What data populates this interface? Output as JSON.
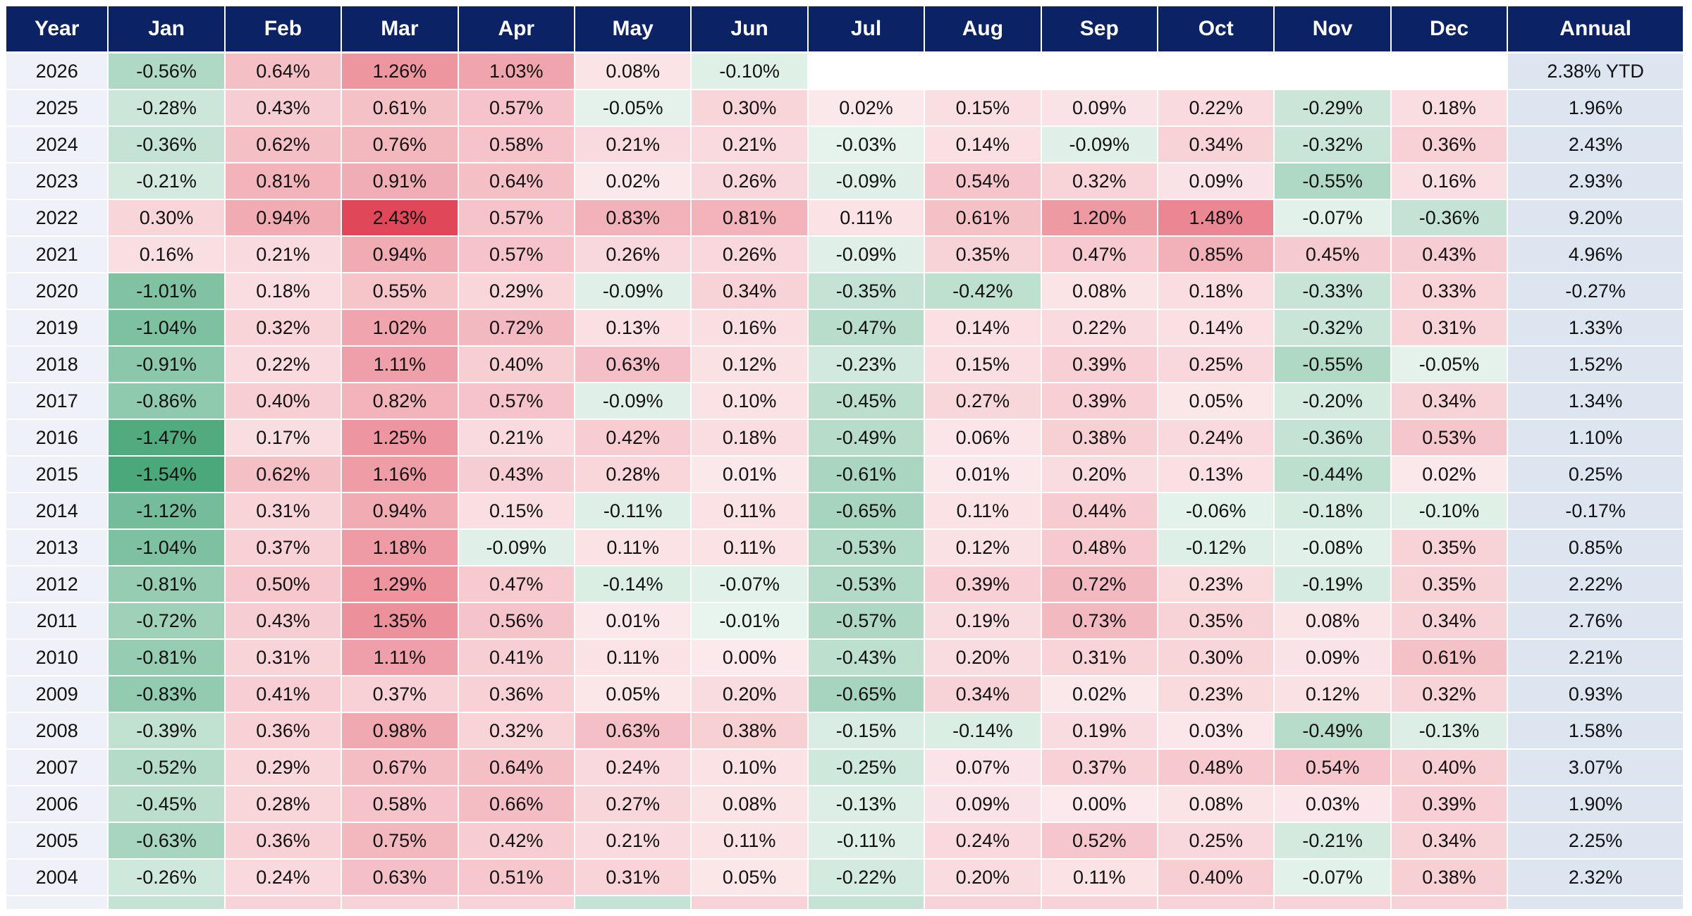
{
  "chart_data": {
    "type": "heatmap",
    "columns": [
      "Year",
      "Jan",
      "Feb",
      "Mar",
      "Apr",
      "May",
      "Jun",
      "Jul",
      "Aug",
      "Sep",
      "Oct",
      "Nov",
      "Dec",
      "Annual"
    ],
    "rows": [
      {
        "year": "2026",
        "values": [
          -0.56,
          0.64,
          1.26,
          1.03,
          0.08,
          -0.1,
          null,
          null,
          null,
          null,
          null,
          null
        ],
        "annual": "2.38% YTD"
      },
      {
        "year": "2025",
        "values": [
          -0.28,
          0.43,
          0.61,
          0.57,
          -0.05,
          0.3,
          0.02,
          0.15,
          0.09,
          0.22,
          -0.29,
          0.18
        ],
        "annual": "1.96%"
      },
      {
        "year": "2024",
        "values": [
          -0.36,
          0.62,
          0.76,
          0.58,
          0.21,
          0.21,
          -0.03,
          0.14,
          -0.09,
          0.34,
          -0.32,
          0.36
        ],
        "annual": "2.43%"
      },
      {
        "year": "2023",
        "values": [
          -0.21,
          0.81,
          0.91,
          0.64,
          0.02,
          0.26,
          -0.09,
          0.54,
          0.32,
          0.09,
          -0.55,
          0.16
        ],
        "annual": "2.93%"
      },
      {
        "year": "2022",
        "values": [
          0.3,
          0.94,
          2.43,
          0.57,
          0.83,
          0.81,
          0.11,
          0.61,
          1.2,
          1.48,
          -0.07,
          -0.36
        ],
        "annual": "9.20%"
      },
      {
        "year": "2021",
        "values": [
          0.16,
          0.21,
          0.94,
          0.57,
          0.26,
          0.26,
          -0.09,
          0.35,
          0.47,
          0.85,
          0.45,
          0.43
        ],
        "annual": "4.96%"
      },
      {
        "year": "2020",
        "values": [
          -1.01,
          0.18,
          0.55,
          0.29,
          -0.09,
          0.34,
          -0.35,
          -0.42,
          0.08,
          0.18,
          -0.33,
          0.33
        ],
        "annual": "-0.27%"
      },
      {
        "year": "2019",
        "values": [
          -1.04,
          0.32,
          1.02,
          0.72,
          0.13,
          0.16,
          -0.47,
          0.14,
          0.22,
          0.14,
          -0.32,
          0.31
        ],
        "annual": "1.33%"
      },
      {
        "year": "2018",
        "values": [
          -0.91,
          0.22,
          1.11,
          0.4,
          0.63,
          0.12,
          -0.23,
          0.15,
          0.39,
          0.25,
          -0.55,
          -0.05
        ],
        "annual": "1.52%"
      },
      {
        "year": "2017",
        "values": [
          -0.86,
          0.4,
          0.82,
          0.57,
          -0.09,
          0.1,
          -0.45,
          0.27,
          0.39,
          0.05,
          -0.2,
          0.34
        ],
        "annual": "1.34%"
      },
      {
        "year": "2016",
        "values": [
          -1.47,
          0.17,
          1.25,
          0.21,
          0.42,
          0.18,
          -0.49,
          0.06,
          0.38,
          0.24,
          -0.36,
          0.53
        ],
        "annual": "1.10%"
      },
      {
        "year": "2015",
        "values": [
          -1.54,
          0.62,
          1.16,
          0.43,
          0.28,
          0.01,
          -0.61,
          0.01,
          0.2,
          0.13,
          -0.44,
          0.02
        ],
        "annual": "0.25%"
      },
      {
        "year": "2014",
        "values": [
          -1.12,
          0.31,
          0.94,
          0.15,
          -0.11,
          0.11,
          -0.65,
          0.11,
          0.44,
          -0.06,
          -0.18,
          -0.1
        ],
        "annual": "-0.17%"
      },
      {
        "year": "2013",
        "values": [
          -1.04,
          0.37,
          1.18,
          -0.09,
          0.11,
          0.11,
          -0.53,
          0.12,
          0.48,
          -0.12,
          -0.08,
          0.35
        ],
        "annual": "0.85%"
      },
      {
        "year": "2012",
        "values": [
          -0.81,
          0.5,
          1.29,
          0.47,
          -0.14,
          -0.07,
          -0.53,
          0.39,
          0.72,
          0.23,
          -0.19,
          0.35
        ],
        "annual": "2.22%"
      },
      {
        "year": "2011",
        "values": [
          -0.72,
          0.43,
          1.35,
          0.56,
          0.01,
          -0.01,
          -0.57,
          0.19,
          0.73,
          0.35,
          0.08,
          0.34
        ],
        "annual": "2.76%"
      },
      {
        "year": "2010",
        "values": [
          -0.81,
          0.31,
          1.11,
          0.41,
          0.11,
          0.0,
          -0.43,
          0.2,
          0.31,
          0.3,
          0.09,
          0.61
        ],
        "annual": "2.21%"
      },
      {
        "year": "2009",
        "values": [
          -0.83,
          0.41,
          0.37,
          0.36,
          0.05,
          0.2,
          -0.65,
          0.34,
          0.02,
          0.23,
          0.12,
          0.32
        ],
        "annual": "0.93%"
      },
      {
        "year": "2008",
        "values": [
          -0.39,
          0.36,
          0.98,
          0.32,
          0.63,
          0.38,
          -0.15,
          -0.14,
          0.19,
          0.03,
          -0.49,
          -0.13
        ],
        "annual": "1.58%"
      },
      {
        "year": "2007",
        "values": [
          -0.52,
          0.29,
          0.67,
          0.64,
          0.24,
          0.1,
          -0.25,
          0.07,
          0.37,
          0.48,
          0.54,
          0.4
        ],
        "annual": "3.07%"
      },
      {
        "year": "2006",
        "values": [
          -0.45,
          0.28,
          0.58,
          0.66,
          0.27,
          0.08,
          -0.13,
          0.09,
          0.0,
          0.08,
          0.03,
          0.39
        ],
        "annual": "1.90%"
      },
      {
        "year": "2005",
        "values": [
          -0.63,
          0.36,
          0.75,
          0.42,
          0.21,
          0.11,
          -0.11,
          0.24,
          0.52,
          0.25,
          -0.21,
          0.34
        ],
        "annual": "2.25%"
      },
      {
        "year": "2004",
        "values": [
          -0.26,
          0.24,
          0.63,
          0.51,
          0.31,
          0.05,
          -0.22,
          0.2,
          0.11,
          0.4,
          -0.07,
          0.38
        ],
        "annual": "2.32%"
      }
    ],
    "partial_row_signs": [
      -1,
      1,
      1,
      1,
      -1,
      1,
      -1,
      1,
      1,
      1,
      1,
      1
    ],
    "color_scale": {
      "positive_color": "#e0485a",
      "negative_color": "#4aa87a",
      "neutral_color": "#ffffff",
      "positive_max": 2.43,
      "negative_max": -1.54
    },
    "header_color": "#0b2265"
  }
}
